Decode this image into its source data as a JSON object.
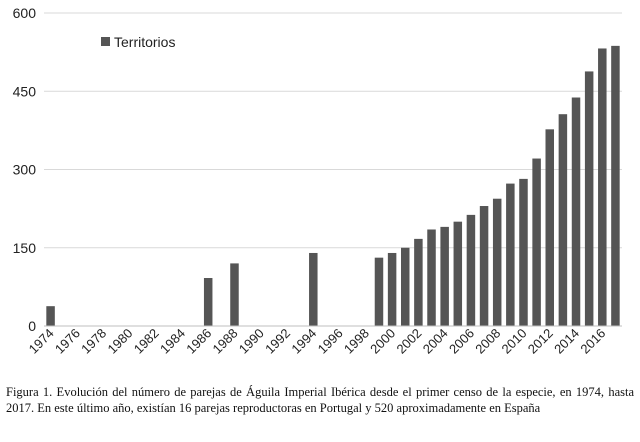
{
  "chart_data": {
    "type": "bar",
    "title": "",
    "xlabel": "",
    "ylabel": "",
    "ylim": [
      0,
      600
    ],
    "yticks": [
      0,
      150,
      300,
      450,
      600
    ],
    "grid": "horizontal",
    "legend_position": "top-left",
    "bar_color": "#555555",
    "categories": [
      "1974",
      "1975",
      "1976",
      "1977",
      "1978",
      "1979",
      "1980",
      "1981",
      "1982",
      "1983",
      "1984",
      "1985",
      "1986",
      "1987",
      "1988",
      "1989",
      "1990",
      "1991",
      "1992",
      "1993",
      "1994",
      "1995",
      "1996",
      "1997",
      "1998",
      "1999",
      "2000",
      "2001",
      "2002",
      "2003",
      "2004",
      "2005",
      "2006",
      "2007",
      "2008",
      "2009",
      "2010",
      "2011",
      "2012",
      "2013",
      "2014",
      "2015",
      "2016",
      "2017"
    ],
    "x_tick_labels": [
      "1974",
      "1976",
      "1978",
      "1980",
      "1982",
      "1984",
      "1986",
      "1988",
      "1990",
      "1992",
      "1994",
      "1996",
      "1998",
      "2000",
      "2002",
      "2004",
      "2006",
      "2008",
      "2010",
      "2012",
      "2014",
      "2016"
    ],
    "series": [
      {
        "name": "Territorios",
        "values": [
          38,
          null,
          null,
          null,
          null,
          null,
          null,
          null,
          null,
          null,
          null,
          null,
          92,
          null,
          120,
          null,
          null,
          null,
          null,
          null,
          140,
          null,
          null,
          null,
          null,
          131,
          140,
          150,
          167,
          185,
          190,
          200,
          213,
          230,
          244,
          273,
          282,
          321,
          377,
          406,
          438,
          488,
          532,
          537
        ]
      }
    ]
  },
  "caption": "Figura 1. Evolución del número de parejas de Águila Imperial Ibérica desde el primer censo de la especie, en 1974, hasta 2017. En este último año, existían 16 parejas reproductoras en Portugal y 520 aproximadamente en España"
}
